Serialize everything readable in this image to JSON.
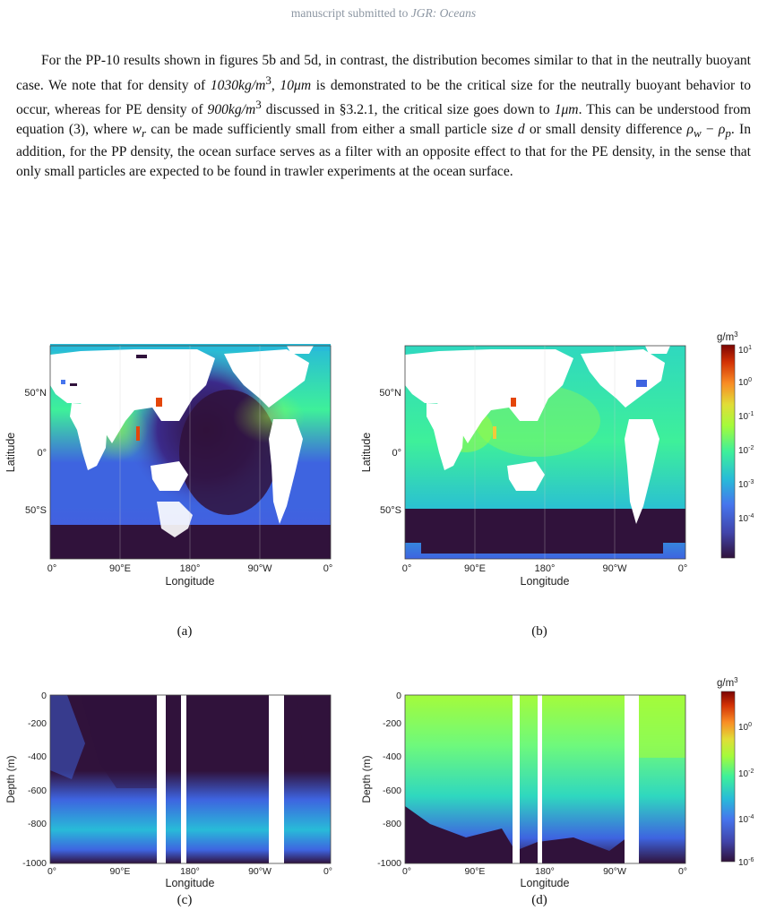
{
  "header": {
    "text_prefix": "manuscript submitted to ",
    "journal": "JGR: Oceans"
  },
  "paragraph": {
    "segments": [
      "For the PP-10 results shown in figures 5b and 5d, in contrast, the distribution becomes similar to that in the neutrally buoyant case. We note that for density of ",
      "1030kg/m",
      "3",
      ", ",
      "10μm",
      " is demonstrated to be the critical size for the neutrally buoyant behavior to occur, whereas for PE density of ",
      "900kg/m",
      "3",
      " discussed in §3.2.1, the critical size goes down to ",
      "1μm",
      ". This can be understood from equation (3), where ",
      "w",
      "r",
      " can be made sufficiently small from either a small particle size ",
      "d",
      " or small density difference ",
      "ρ",
      "w",
      " − ",
      "ρ",
      "p",
      ". In addition, for the PP density, the ocean surface serves as a filter with an opposite effect to that for the PE density, in the sense that only small particles are expected to be found in trawler experiments at the ocean surface."
    ]
  },
  "figure": {
    "captions": [
      "(a)",
      "(b)",
      "(c)",
      "(d)"
    ],
    "map_panels": {
      "ylabel": "Latitude",
      "xlabel": "Longitude",
      "yticks": [
        "50°N",
        "0°",
        "50°S"
      ],
      "xticks": [
        "0°",
        "90°E",
        "180°",
        "90°W",
        "0°"
      ]
    },
    "depth_panels": {
      "ylabel": "Depth (m)",
      "xlabel": "Longitude",
      "yticks": [
        "0",
        "-200",
        "-400",
        "-600",
        "-800",
        "-1000"
      ],
      "xticks": [
        "0°",
        "90°E",
        "180°",
        "90°W",
        "0°"
      ]
    },
    "colorbar_top": {
      "unit": "g/m",
      "unit_sup": "3",
      "ticks": [
        {
          "base": "10",
          "exp": "1"
        },
        {
          "base": "10",
          "exp": "0"
        },
        {
          "base": "10",
          "exp": "-1"
        },
        {
          "base": "10",
          "exp": "-2"
        },
        {
          "base": "10",
          "exp": "-3"
        },
        {
          "base": "10",
          "exp": "-4"
        }
      ]
    },
    "colorbar_bottom": {
      "unit": "g/m",
      "unit_sup": "3",
      "ticks": [
        {
          "base": "10",
          "exp": "0"
        },
        {
          "base": "10",
          "exp": "-2"
        },
        {
          "base": "10",
          "exp": "-4"
        },
        {
          "base": "10",
          "exp": "-6"
        }
      ]
    },
    "colors": {
      "deep": "#30123b",
      "low": "#3e64e0",
      "mid_low": "#28bbd8",
      "mid": "#3ef09a",
      "mid_high": "#a4fb3b",
      "high": "#f1ca3a",
      "hot": "#e4460a",
      "max": "#7a0403"
    }
  }
}
